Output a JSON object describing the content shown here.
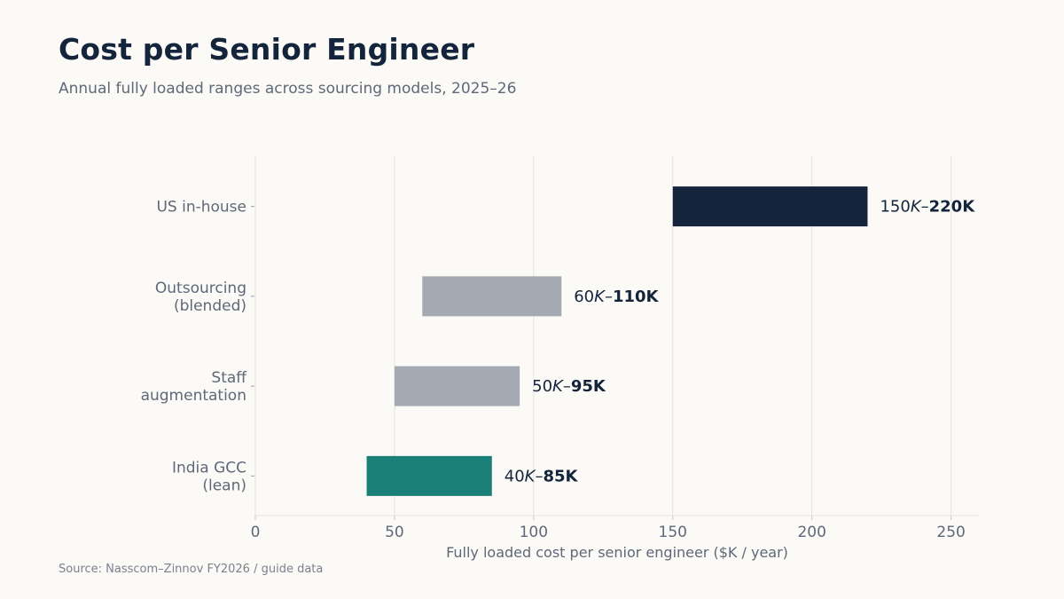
{
  "header": {
    "title": "Cost per Senior Engineer",
    "subtitle": "Annual fully loaded ranges across sourcing models, 2025–26"
  },
  "footer": {
    "source": "Source: Nasscom–Zinnov FY2026 / guide data"
  },
  "colors": {
    "us": "#14243b",
    "neutral": "#a3aab2",
    "india": "#1a7f77"
  },
  "chart_data": {
    "type": "bar",
    "orientation": "horizontal",
    "title": "Cost per Senior Engineer",
    "subtitle": "Annual fully loaded ranges across sourcing models, 2025–26",
    "xlabel": "Fully loaded cost per senior engineer ($K / year)",
    "ylabel": "",
    "xlim": [
      0,
      260
    ],
    "xticks": [
      0,
      50,
      100,
      150,
      200,
      250
    ],
    "grid": true,
    "categories": [
      [
        "US in-house"
      ],
      [
        "Outsourcing",
        "(blended)"
      ],
      [
        "Staff",
        "augmentation"
      ],
      [
        "India GCC",
        "(lean)"
      ]
    ],
    "ranges": [
      {
        "low": 150,
        "high": 220,
        "label_low": "150K",
        "label_high": "220K",
        "color": "#14243b"
      },
      {
        "low": 60,
        "high": 110,
        "label_low": "60K",
        "label_high": "110K",
        "color": "#a3aab2"
      },
      {
        "low": 50,
        "high": 95,
        "label_low": "50K",
        "label_high": "95K",
        "color": "#a3aab2"
      },
      {
        "low": 40,
        "high": 85,
        "label_low": "40K",
        "label_high": "85K",
        "color": "#1a7f77"
      }
    ]
  }
}
